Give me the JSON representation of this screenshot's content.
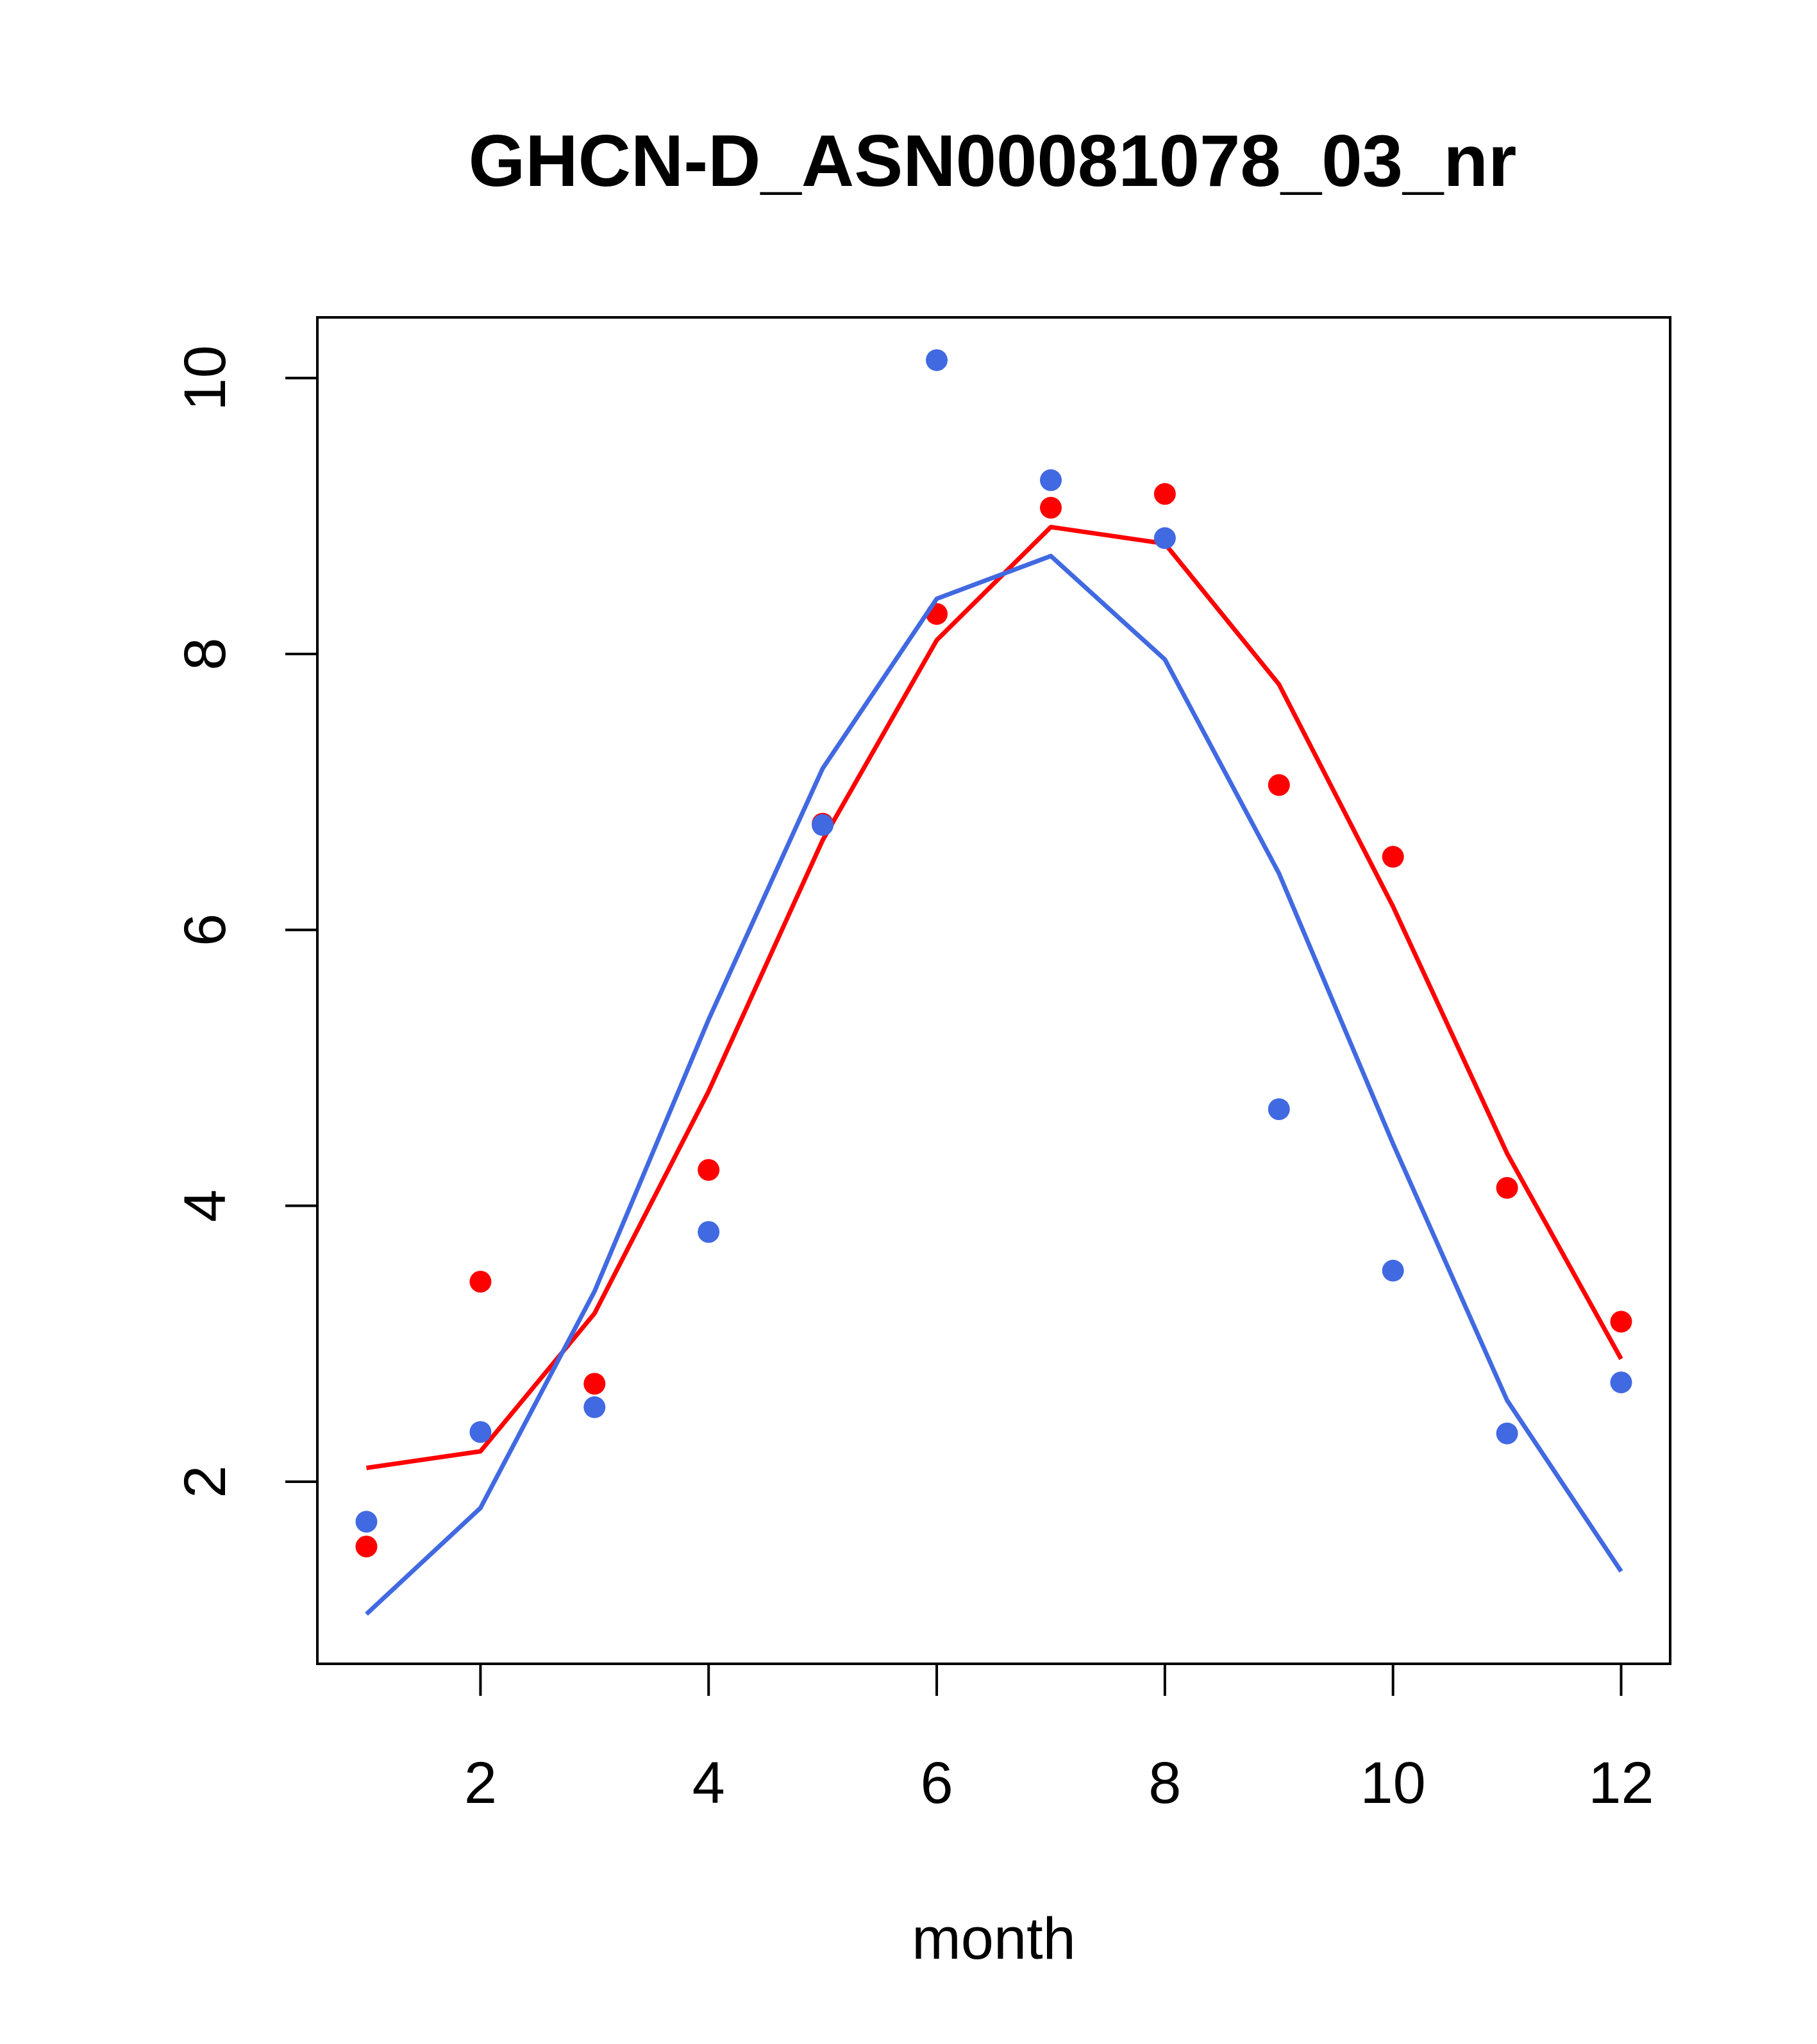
{
  "chart_data": {
    "type": "line",
    "title": "GHCN-D_ASN00081078_03_nr",
    "xlabel": "month",
    "ylabel": "",
    "xlim": [
      0.57,
      12.43
    ],
    "ylim": [
      0.68,
      10.44
    ],
    "xticks": [
      2,
      4,
      6,
      8,
      10,
      12
    ],
    "yticks": [
      2,
      4,
      6,
      8,
      10
    ],
    "grid": false,
    "legend": "none",
    "x": [
      1,
      2,
      3,
      4,
      5,
      6,
      7,
      8,
      9,
      10,
      11,
      12
    ],
    "series": [
      {
        "color": "#ff0000",
        "points": [
          1.53,
          3.45,
          2.71,
          4.26,
          6.77,
          8.29,
          9.06,
          9.16,
          7.05,
          6.53,
          4.13,
          3.16
        ],
        "line": [
          2.1,
          2.22,
          3.22,
          4.83,
          6.65,
          8.1,
          8.92,
          8.8,
          7.78,
          6.17,
          4.38,
          2.89
        ]
      },
      {
        "color": "#4169e1",
        "points": [
          1.71,
          2.36,
          2.54,
          3.81,
          6.76,
          10.13,
          9.26,
          8.84,
          4.7,
          3.53,
          2.35,
          2.72
        ],
        "line": [
          1.04,
          1.81,
          3.38,
          5.35,
          7.17,
          8.4,
          8.71,
          7.96,
          6.41,
          4.45,
          2.59,
          1.35
        ]
      }
    ]
  }
}
